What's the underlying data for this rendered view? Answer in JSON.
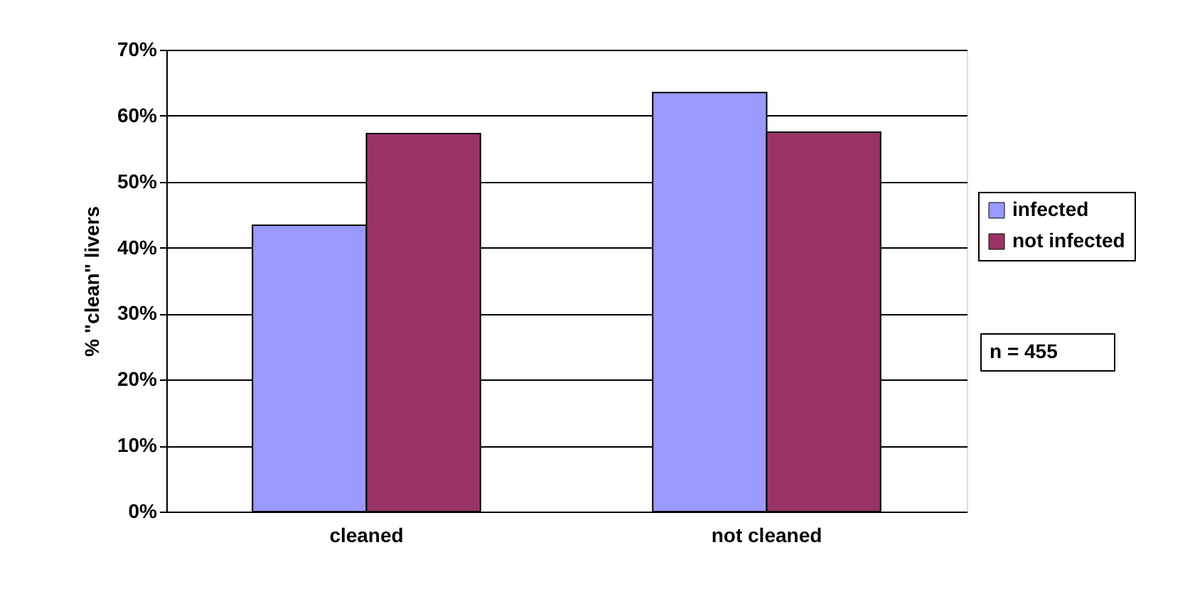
{
  "chart_data": {
    "type": "bar",
    "ylabel": "% \"clean\" livers",
    "categories": [
      "cleaned",
      "not cleaned"
    ],
    "series": [
      {
        "name": "infected",
        "color": "#9999ff",
        "values": [
          43.4,
          63.5
        ]
      },
      {
        "name": "not infected",
        "color": "#993366",
        "values": [
          57.3,
          57.5
        ]
      }
    ],
    "ylim": [
      0,
      70
    ],
    "yticks": [
      {
        "value": 0,
        "label": "0%"
      },
      {
        "value": 10,
        "label": "10%"
      },
      {
        "value": 20,
        "label": "20%"
      },
      {
        "value": 30,
        "label": "30%"
      },
      {
        "value": 40,
        "label": "40%"
      },
      {
        "value": 50,
        "label": "50%"
      },
      {
        "value": 60,
        "label": "60%"
      },
      {
        "value": 70,
        "label": "70%"
      }
    ],
    "grid": "y",
    "legend": "right",
    "annotations": [
      "n = 455"
    ]
  }
}
